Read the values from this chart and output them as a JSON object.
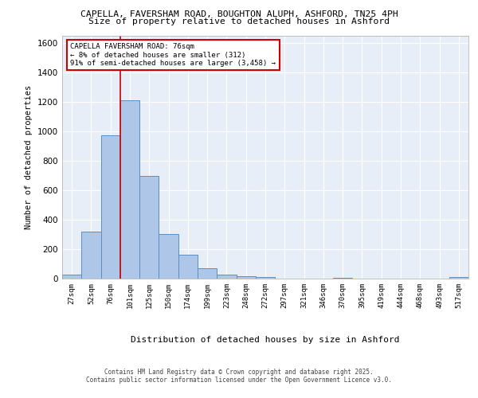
{
  "title1": "CAPELLA, FAVERSHAM ROAD, BOUGHTON ALUPH, ASHFORD, TN25 4PH",
  "title2": "Size of property relative to detached houses in Ashford",
  "xlabel": "Distribution of detached houses by size in Ashford",
  "ylabel": "Number of detached properties",
  "categories": [
    "27sqm",
    "52sqm",
    "76sqm",
    "101sqm",
    "125sqm",
    "150sqm",
    "174sqm",
    "199sqm",
    "223sqm",
    "248sqm",
    "272sqm",
    "297sqm",
    "321sqm",
    "346sqm",
    "370sqm",
    "395sqm",
    "419sqm",
    "444sqm",
    "468sqm",
    "493sqm",
    "517sqm"
  ],
  "values": [
    25,
    320,
    975,
    1210,
    700,
    305,
    160,
    70,
    28,
    18,
    12,
    0,
    0,
    0,
    8,
    0,
    0,
    0,
    0,
    0,
    12
  ],
  "bar_color": "#aec6e8",
  "bar_edge_color": "#5a8fc2",
  "vline_color": "#cc0000",
  "annotation_text": "CAPELLA FAVERSHAM ROAD: 76sqm\n← 8% of detached houses are smaller (312)\n91% of semi-detached houses are larger (3,458) →",
  "annotation_box_color": "#ffffff",
  "annotation_box_edge": "#cc0000",
  "ylim": [
    0,
    1650
  ],
  "yticks": [
    0,
    200,
    400,
    600,
    800,
    1000,
    1200,
    1400,
    1600
  ],
  "plot_bg_color": "#e8eef7",
  "footer1": "Contains HM Land Registry data © Crown copyright and database right 2025.",
  "footer2": "Contains public sector information licensed under the Open Government Licence v3.0."
}
